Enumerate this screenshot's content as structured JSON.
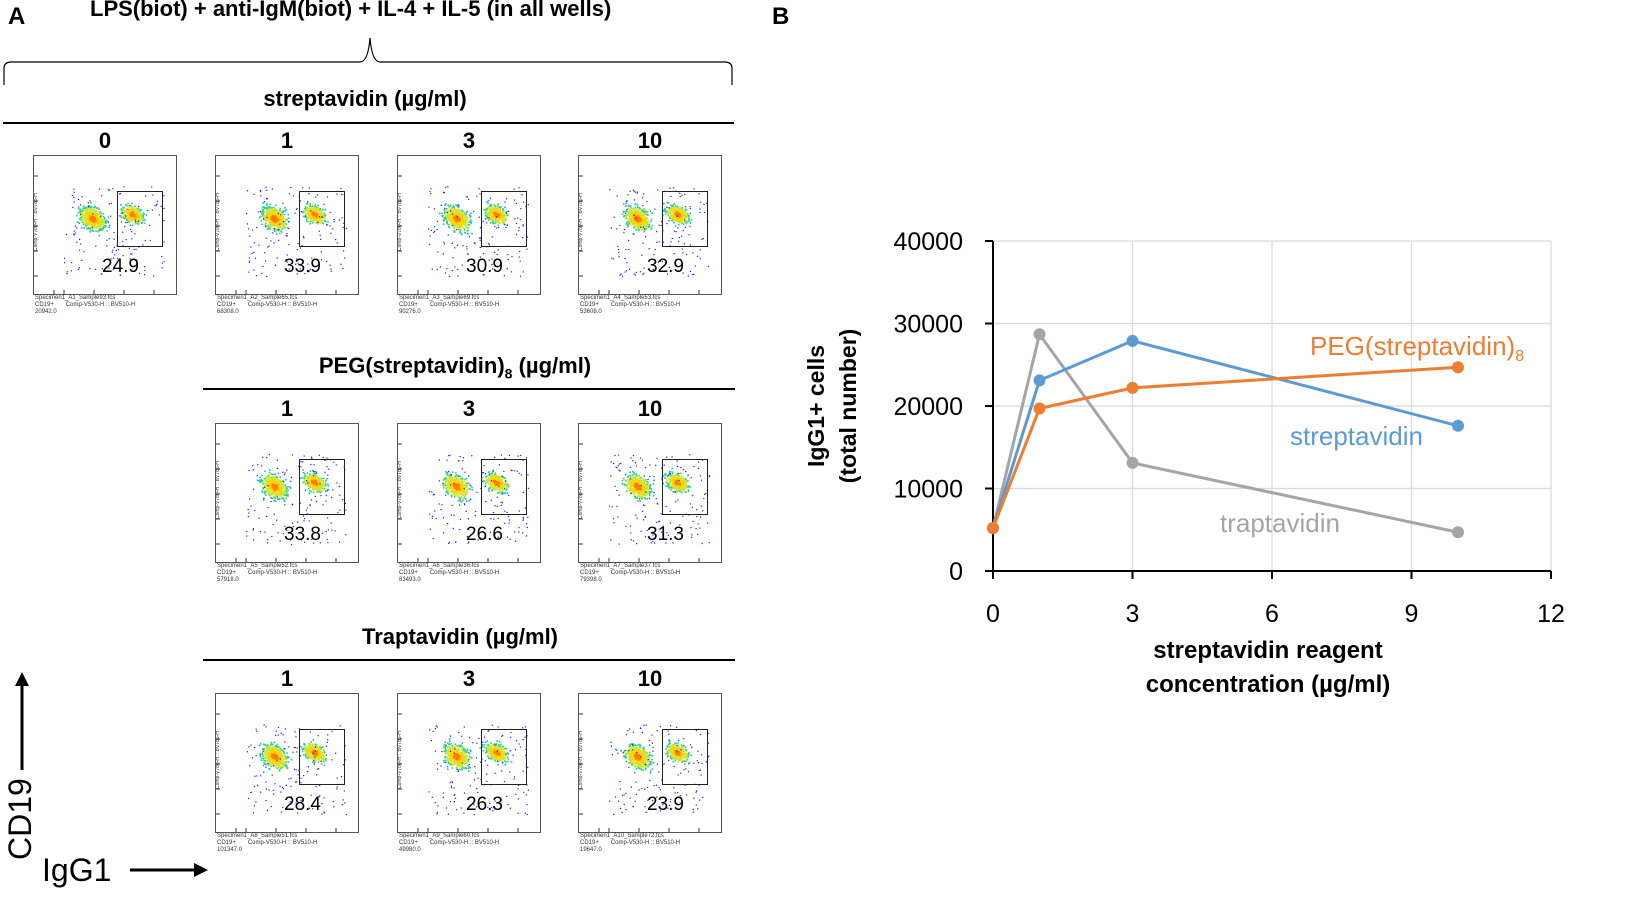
{
  "panel_a": {
    "label": "A",
    "top_title": "LPS(biot) + anti-IgM(biot) + IL-4 + IL-5 (in all wells)",
    "y_axis_marker": "CD19",
    "x_axis_marker": "IgG1",
    "sections": [
      {
        "title": "streptavidin (µg/ml)",
        "concentrations": [
          "0",
          "1",
          "3",
          "10"
        ],
        "percentages": [
          "24.9",
          "33.9",
          "30.9",
          "32.9"
        ],
        "specimens": [
          "Specimen1_A1_Sample93.fcs",
          "Specimen1_A2_Sample65.fcs",
          "Specimen1_A3_Sample69.fcs",
          "Specimen1_A4_Sample53.fcs"
        ],
        "counts": [
          "20942.0",
          "68308.0",
          "90276.0",
          "53608.0"
        ]
      },
      {
        "title_main": "PEG(streptavidin)",
        "title_sub": "8",
        "title_unit": " (µg/ml)",
        "concentrations": [
          "1",
          "3",
          "10"
        ],
        "percentages": [
          "33.8",
          "26.6",
          "31.3"
        ],
        "specimens": [
          "Specimen1_A5_Sample52.fcs",
          "Specimen1_A6_Sample36.fcs",
          "Specimen1_A7_Sample37.fcs"
        ],
        "counts": [
          "57918.0",
          "83493.0",
          "79398.0"
        ]
      },
      {
        "title": "Traptavidin (µg/ml)",
        "concentrations": [
          "1",
          "3",
          "10"
        ],
        "percentages": [
          "28.4",
          "26.3",
          "23.9"
        ],
        "specimens": [
          "Specimen1_A8_Sample51.fcs",
          "Specimen1_A9_Sample60.fcs",
          "Specimen1_A10_Sample72.fcs"
        ],
        "counts": [
          "101347.0",
          "49980.0",
          "19647.0"
        ]
      }
    ],
    "plot_text": {
      "y_param": "Comp-V780-H :: BV785-H",
      "x_param": "Comp-V530-H :: BV510-H",
      "gate_name": "CD19+"
    }
  },
  "panel_b": {
    "label": "B",
    "colors": {
      "streptavidin": "#5B9BD5",
      "peg": "#ED7D31",
      "traptavidin": "#A5A5A5",
      "grid": "#d9d9d9"
    },
    "chart_data": {
      "type": "line",
      "ylabel_line1": "IgG1+ cells",
      "ylabel_line2": "(total number)",
      "xlabel_line1": "streptavidin reagent",
      "xlabel_line2": "concentration (µg/ml)",
      "xlim": [
        0,
        12
      ],
      "ylim": [
        0,
        40000
      ],
      "x_ticks": [
        "0",
        "3",
        "6",
        "9",
        "12"
      ],
      "y_ticks": [
        "0",
        "10000",
        "20000",
        "30000",
        "40000"
      ],
      "grid": true,
      "series": [
        {
          "key": "peg",
          "name": "PEG(streptavidin)",
          "name_sub": "8",
          "x": [
            0,
            1,
            3,
            10
          ],
          "y": [
            5200,
            19700,
            22200,
            24700
          ]
        },
        {
          "key": "streptavidin",
          "name": "streptavidin",
          "x": [
            0,
            1,
            3,
            10
          ],
          "y": [
            5200,
            23100,
            27900,
            17600
          ]
        },
        {
          "key": "traptavidin",
          "name": "traptavidin",
          "x": [
            0,
            1,
            3,
            10
          ],
          "y": [
            5200,
            28700,
            13100,
            4700
          ]
        }
      ]
    }
  }
}
